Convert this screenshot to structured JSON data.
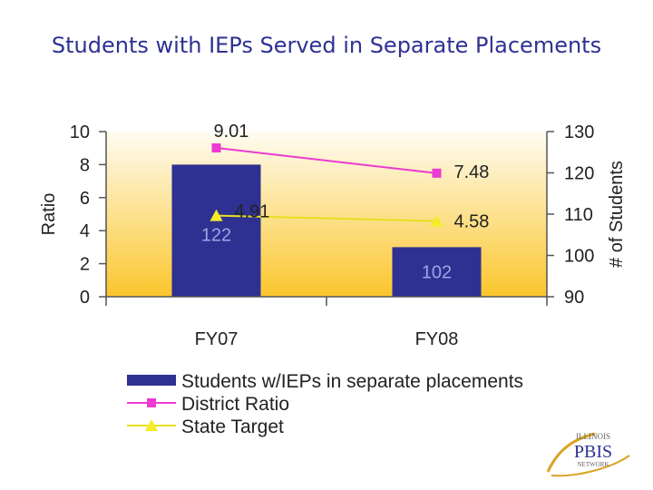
{
  "title": "Students with IEPs Served in Separate Placements",
  "chart_data": {
    "type": "bar",
    "categories": [
      "FY07",
      "FY08"
    ],
    "series": [
      {
        "name": "Students w/IEPs  in separate placements",
        "kind": "bar",
        "axis": "right",
        "values": [
          122,
          102
        ],
        "color": "#2e3192"
      },
      {
        "name": "District Ratio",
        "kind": "line",
        "axis": "left",
        "values": [
          9.01,
          7.48
        ],
        "color": "#ec3ad2",
        "marker": "square"
      },
      {
        "name": "State Target",
        "kind": "line",
        "axis": "left",
        "values": [
          4.91,
          4.58
        ],
        "color": "#f5ec2a",
        "marker": "triangle"
      }
    ],
    "bar_labels": [
      "122",
      "102"
    ],
    "district_labels": [
      "9.01",
      "7.48"
    ],
    "target_labels": [
      "4.91",
      "4.58"
    ],
    "ylabel_left": "Ratio",
    "ylabel_right": "# of Students",
    "ylim_left": [
      0,
      10
    ],
    "ylim_right": [
      90,
      130
    ],
    "yticks_left": [
      "0",
      "2",
      "4",
      "6",
      "8",
      "10"
    ],
    "yticks_right": [
      "90",
      "100",
      "110",
      "120",
      "130"
    ],
    "background_gradient": [
      "#fefcf2",
      "#fbc62c"
    ],
    "legend_position": "bottom"
  },
  "logo": {
    "line1": "ILLINOIS",
    "line2": "PBIS",
    "line3": "NETWORK"
  }
}
